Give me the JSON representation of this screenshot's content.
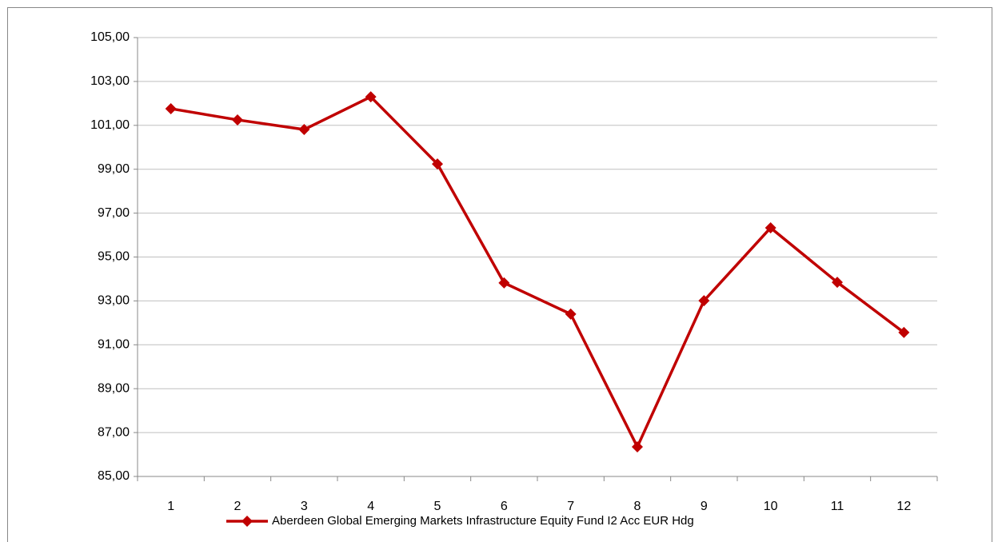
{
  "chart_data": {
    "type": "line",
    "categories": [
      "1",
      "2",
      "3",
      "4",
      "5",
      "6",
      "7",
      "8",
      "9",
      "10",
      "11",
      "12"
    ],
    "series": [
      {
        "name": "Aberdeen Global Emerging Markets Infrastructure Equity Fund I2 Acc EUR Hdg",
        "color": "#c00000",
        "values": [
          101.76,
          101.25,
          100.81,
          102.3,
          99.24,
          93.82,
          92.4,
          86.35,
          93.01,
          96.33,
          93.85,
          91.56
        ]
      }
    ],
    "ylim": [
      85,
      105
    ],
    "yticks": [
      {
        "value": 85,
        "label": "85,00"
      },
      {
        "value": 87,
        "label": "87,00"
      },
      {
        "value": 89,
        "label": "89,00"
      },
      {
        "value": 91,
        "label": "91,00"
      },
      {
        "value": 93,
        "label": "93,00"
      },
      {
        "value": 95,
        "label": "95,00"
      },
      {
        "value": 97,
        "label": "97,00"
      },
      {
        "value": 99,
        "label": "99,00"
      },
      {
        "value": 101,
        "label": "101,00"
      },
      {
        "value": 103,
        "label": "103,00"
      },
      {
        "value": 105,
        "label": "105,00"
      }
    ],
    "grid": true,
    "legend": "bottom"
  }
}
